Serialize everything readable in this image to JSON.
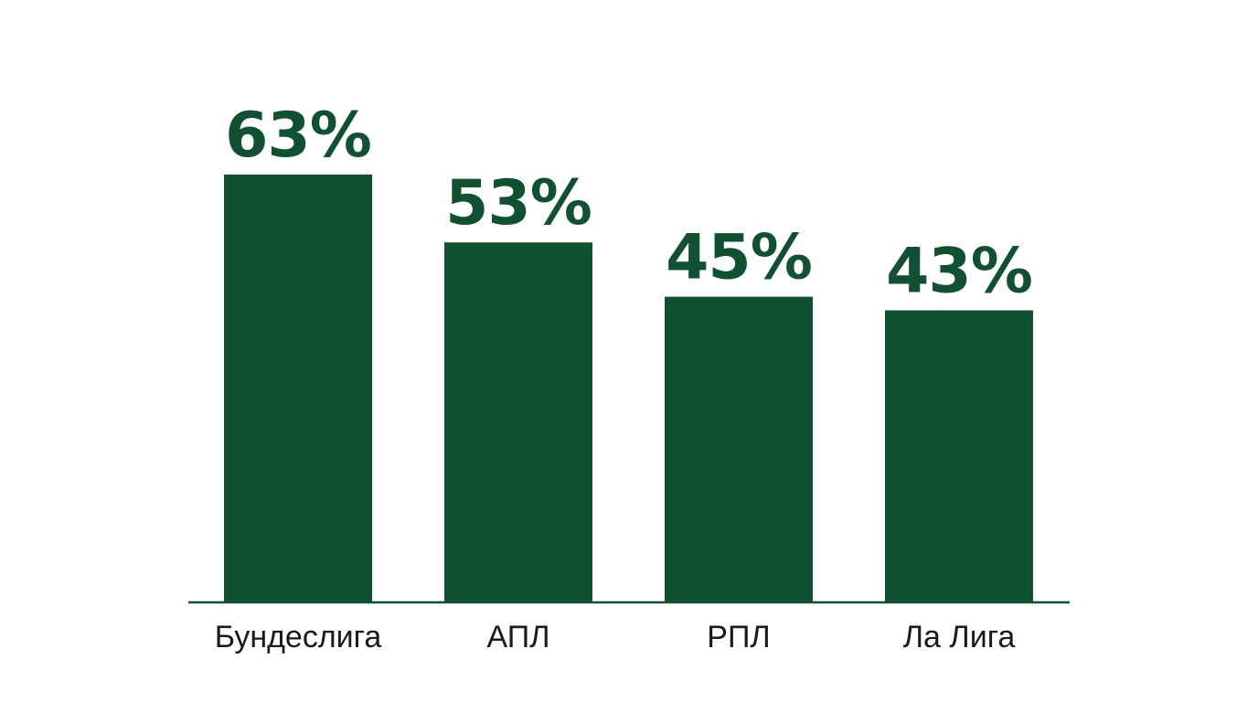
{
  "chart_data": {
    "type": "bar",
    "categories": [
      "Бундеслига",
      "АПЛ",
      "РПЛ",
      "Ла Лига"
    ],
    "values": [
      63,
      53,
      45,
      43
    ],
    "value_labels": [
      "63%",
      "53%",
      "45%",
      "43%"
    ],
    "title": "",
    "xlabel": "",
    "ylabel": "",
    "ylim": [
      0,
      100
    ],
    "grid": false,
    "legend": "none",
    "colors": {
      "bar": "#0f5130",
      "value_text": "#0f5130",
      "axis": "#0f5130",
      "category_text": "#1a1a1a",
      "background": "#ffffff"
    }
  }
}
